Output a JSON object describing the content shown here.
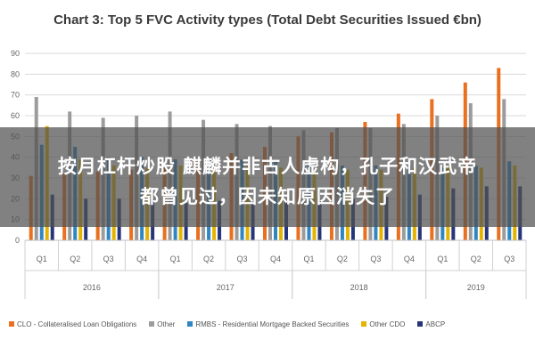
{
  "title": "Chart 3: Top 5 FVC Activity types (Total Debt Securities Issued €bn)",
  "overlay": {
    "line1": "按月杠杆炒股 麒麟并非古人虚构，孔子和汉武帝",
    "line2": "都曾见过，因未知原因消失了"
  },
  "chart_data": {
    "type": "bar",
    "title": "Chart 3: Top 5 FVC Activity types (Total Debt Securities Issued €bn)",
    "ylim": [
      0,
      90
    ],
    "yticks": [
      "0",
      "10",
      "20",
      "30",
      "40",
      "50",
      "60",
      "70",
      "80",
      "90"
    ],
    "grid": true,
    "legend_position": "bottom",
    "categories": [
      "Q1",
      "Q2",
      "Q3",
      "Q4",
      "Q1",
      "Q2",
      "Q3",
      "Q4",
      "Q1",
      "Q2",
      "Q3",
      "Q4",
      "Q1",
      "Q2",
      "Q3"
    ],
    "groups": [
      {
        "label": "2016",
        "start": 0,
        "count": 4
      },
      {
        "label": "2017",
        "start": 4,
        "count": 4
      },
      {
        "label": "2018",
        "start": 8,
        "count": 4
      },
      {
        "label": "2019",
        "start": 12,
        "count": 3
      }
    ],
    "series": [
      {
        "name": "CLO - Collateralised Loan Obligations",
        "color": "#e8701f",
        "values": [
          31,
          32,
          33,
          34,
          35,
          37,
          42,
          45,
          50,
          52,
          57,
          61,
          68,
          76,
          83
        ]
      },
      {
        "name": "Other",
        "color": "#9c9c9c",
        "values": [
          69,
          62,
          59,
          60,
          62,
          58,
          56,
          55,
          53,
          54,
          54,
          56,
          60,
          66,
          68
        ]
      },
      {
        "name": "RMBS - Residential Mortgage Backed Securities",
        "color": "#2f86c2",
        "values": [
          46,
          45,
          40,
          40,
          39,
          40,
          39,
          38,
          37,
          36,
          36,
          36,
          35,
          36,
          38
        ]
      },
      {
        "name": "Other CDO",
        "color": "#e5b400",
        "values": [
          55,
          39,
          36,
          35,
          36,
          36,
          36,
          35,
          34,
          34,
          34,
          35,
          36,
          35,
          36
        ]
      },
      {
        "name": "ABCP",
        "color": "#27367a",
        "values": [
          22,
          20,
          20,
          19,
          18,
          19,
          19,
          19,
          19,
          20,
          21,
          22,
          25,
          26,
          26
        ]
      }
    ]
  }
}
